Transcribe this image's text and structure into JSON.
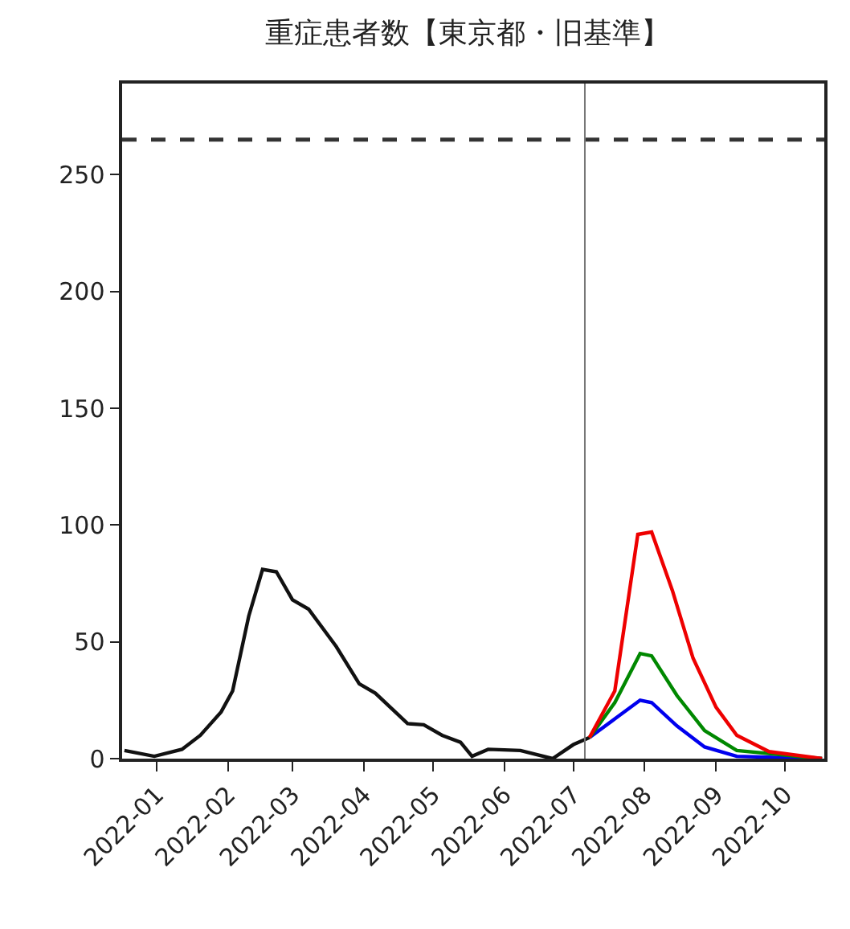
{
  "chart_data": {
    "type": "line",
    "title": "重症患者数【東京都・旧基準】",
    "series": [
      {
        "color": "#111111",
        "x": [
          "2021-12-18",
          "2021-12-31",
          "2022-01-12",
          "2022-01-20",
          "2022-01-29",
          "2022-02-03",
          "2022-02-10",
          "2022-02-16",
          "2022-02-22",
          "2022-03-01",
          "2022-03-08",
          "2022-03-20",
          "2022-03-30",
          "2022-04-06",
          "2022-04-20",
          "2022-04-27",
          "2022-05-05",
          "2022-05-13",
          "2022-05-18",
          "2022-05-25",
          "2022-06-08",
          "2022-06-22",
          "2022-07-01",
          "2022-07-08"
        ],
        "values": [
          3.5,
          1,
          4,
          10,
          20,
          29,
          61,
          81,
          80,
          68,
          64,
          48,
          32,
          28,
          15,
          14.5,
          10,
          7,
          1,
          4,
          3.5,
          0,
          6,
          9
        ]
      },
      {
        "color": "#0000ee",
        "x": [
          "2022-07-08",
          "2022-07-19",
          "2022-07-30",
          "2022-08-04",
          "2022-08-15",
          "2022-08-27",
          "2022-09-10",
          "2022-10-17"
        ],
        "values": [
          9,
          17,
          25,
          24,
          14,
          5,
          1,
          0
        ]
      },
      {
        "color": "#008800",
        "x": [
          "2022-07-08",
          "2022-07-19",
          "2022-07-30",
          "2022-08-04",
          "2022-08-15",
          "2022-08-27",
          "2022-09-10",
          "2022-10-17"
        ],
        "values": [
          9,
          24,
          45,
          44,
          27,
          12,
          3.5,
          0
        ]
      },
      {
        "color": "#ee0000",
        "x": [
          "2022-07-08",
          "2022-07-19",
          "2022-07-29",
          "2022-08-04",
          "2022-08-13",
          "2022-08-22",
          "2022-09-01",
          "2022-09-10",
          "2022-09-24",
          "2022-10-17"
        ],
        "values": [
          9,
          29,
          96,
          97,
          72,
          43,
          22,
          10,
          3,
          0
        ]
      }
    ],
    "xlim": [
      "2021-12-17",
      "2022-10-18"
    ],
    "xticks": [
      {
        "value": "2022-01-01",
        "label": "2022-01"
      },
      {
        "value": "2022-02-01",
        "label": "2022-02"
      },
      {
        "value": "2022-03-01",
        "label": "2022-03"
      },
      {
        "value": "2022-04-01",
        "label": "2022-04"
      },
      {
        "value": "2022-05-01",
        "label": "2022-05"
      },
      {
        "value": "2022-06-01",
        "label": "2022-06"
      },
      {
        "value": "2022-07-01",
        "label": "2022-07"
      },
      {
        "value": "2022-08-01",
        "label": "2022-08"
      },
      {
        "value": "2022-09-01",
        "label": "2022-09"
      },
      {
        "value": "2022-10-01",
        "label": "2022-10"
      }
    ],
    "ylim": [
      0,
      289
    ],
    "yticks": [
      0,
      50,
      100,
      150,
      200,
      250
    ],
    "line_style": "solid",
    "marker": "none",
    "ref_lines": [
      {
        "axis": "y",
        "value": 265,
        "label": null,
        "color": "#333333",
        "line_style": "dashed"
      },
      {
        "axis": "x",
        "value": "2022-07-06",
        "label": null,
        "color": "#777777",
        "line_style": "solid"
      }
    ]
  }
}
